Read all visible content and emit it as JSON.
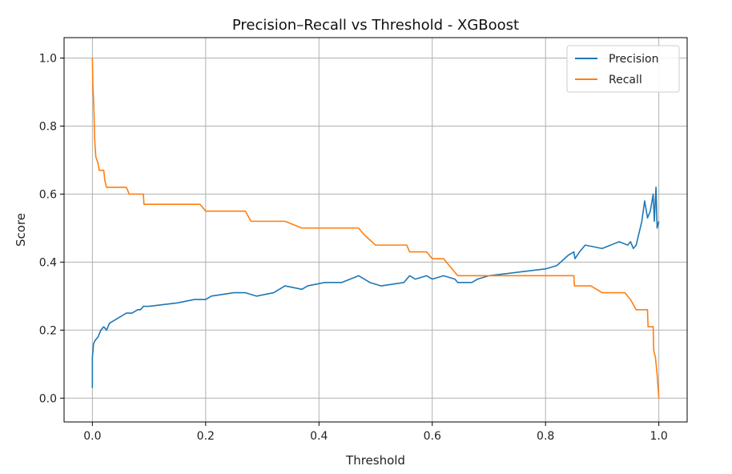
{
  "chart_data": {
    "type": "line",
    "title": "Precision–Recall vs Threshold - XGBoost",
    "xlabel": "Threshold",
    "ylabel": "Score",
    "xlim": [
      -0.05,
      1.05
    ],
    "ylim": [
      -0.07,
      1.06
    ],
    "xticks": [
      0.0,
      0.2,
      0.4,
      0.6,
      0.8,
      1.0
    ],
    "xtick_labels": [
      "0.0",
      "0.2",
      "0.4",
      "0.6",
      "0.8",
      "1.0"
    ],
    "yticks": [
      0.0,
      0.2,
      0.4,
      0.6,
      0.8,
      1.0
    ],
    "ytick_labels": [
      "0.0",
      "0.2",
      "0.4",
      "0.6",
      "0.8",
      "1.0"
    ],
    "grid": true,
    "legend": "top-right",
    "series": [
      {
        "name": "Precision",
        "color": "#1f77b4",
        "points": [
          [
            0.0,
            0.03
          ],
          [
            0.0,
            0.12
          ],
          [
            0.002,
            0.16
          ],
          [
            0.005,
            0.17
          ],
          [
            0.01,
            0.18
          ],
          [
            0.015,
            0.2
          ],
          [
            0.02,
            0.21
          ],
          [
            0.025,
            0.2
          ],
          [
            0.03,
            0.22
          ],
          [
            0.04,
            0.23
          ],
          [
            0.05,
            0.24
          ],
          [
            0.06,
            0.25
          ],
          [
            0.07,
            0.25
          ],
          [
            0.08,
            0.26
          ],
          [
            0.085,
            0.26
          ],
          [
            0.09,
            0.27
          ],
          [
            0.1,
            0.27
          ],
          [
            0.15,
            0.28
          ],
          [
            0.18,
            0.29
          ],
          [
            0.19,
            0.29
          ],
          [
            0.2,
            0.29
          ],
          [
            0.21,
            0.3
          ],
          [
            0.25,
            0.31
          ],
          [
            0.27,
            0.31
          ],
          [
            0.29,
            0.3
          ],
          [
            0.32,
            0.31
          ],
          [
            0.34,
            0.33
          ],
          [
            0.37,
            0.32
          ],
          [
            0.38,
            0.33
          ],
          [
            0.41,
            0.34
          ],
          [
            0.44,
            0.34
          ],
          [
            0.47,
            0.36
          ],
          [
            0.49,
            0.34
          ],
          [
            0.51,
            0.33
          ],
          [
            0.55,
            0.34
          ],
          [
            0.56,
            0.36
          ],
          [
            0.57,
            0.35
          ],
          [
            0.59,
            0.36
          ],
          [
            0.6,
            0.35
          ],
          [
            0.62,
            0.36
          ],
          [
            0.64,
            0.35
          ],
          [
            0.645,
            0.34
          ],
          [
            0.67,
            0.34
          ],
          [
            0.68,
            0.35
          ],
          [
            0.7,
            0.36
          ],
          [
            0.75,
            0.37
          ],
          [
            0.8,
            0.38
          ],
          [
            0.82,
            0.39
          ],
          [
            0.84,
            0.42
          ],
          [
            0.85,
            0.43
          ],
          [
            0.852,
            0.41
          ],
          [
            0.86,
            0.43
          ],
          [
            0.87,
            0.45
          ],
          [
            0.9,
            0.44
          ],
          [
            0.93,
            0.46
          ],
          [
            0.945,
            0.45
          ],
          [
            0.95,
            0.46
          ],
          [
            0.955,
            0.44
          ],
          [
            0.96,
            0.45
          ],
          [
            0.97,
            0.52
          ],
          [
            0.975,
            0.58
          ],
          [
            0.98,
            0.53
          ],
          [
            0.985,
            0.55
          ],
          [
            0.99,
            0.6
          ],
          [
            0.992,
            0.52
          ],
          [
            0.995,
            0.62
          ],
          [
            0.997,
            0.5
          ],
          [
            1.0,
            0.52
          ]
        ]
      },
      {
        "name": "Recall",
        "color": "#ff7f0e",
        "points": [
          [
            0.0,
            1.0
          ],
          [
            0.001,
            0.91
          ],
          [
            0.002,
            0.88
          ],
          [
            0.003,
            0.83
          ],
          [
            0.004,
            0.76
          ],
          [
            0.006,
            0.71
          ],
          [
            0.01,
            0.69
          ],
          [
            0.012,
            0.67
          ],
          [
            0.02,
            0.67
          ],
          [
            0.022,
            0.64
          ],
          [
            0.025,
            0.62
          ],
          [
            0.06,
            0.62
          ],
          [
            0.065,
            0.6
          ],
          [
            0.09,
            0.6
          ],
          [
            0.091,
            0.57
          ],
          [
            0.19,
            0.57
          ],
          [
            0.2,
            0.55
          ],
          [
            0.27,
            0.55
          ],
          [
            0.28,
            0.52
          ],
          [
            0.34,
            0.52
          ],
          [
            0.37,
            0.5
          ],
          [
            0.44,
            0.5
          ],
          [
            0.47,
            0.5
          ],
          [
            0.48,
            0.48
          ],
          [
            0.5,
            0.45
          ],
          [
            0.555,
            0.45
          ],
          [
            0.56,
            0.43
          ],
          [
            0.59,
            0.43
          ],
          [
            0.6,
            0.41
          ],
          [
            0.62,
            0.41
          ],
          [
            0.635,
            0.38
          ],
          [
            0.645,
            0.36
          ],
          [
            0.85,
            0.36
          ],
          [
            0.851,
            0.33
          ],
          [
            0.88,
            0.33
          ],
          [
            0.9,
            0.31
          ],
          [
            0.94,
            0.31
          ],
          [
            0.95,
            0.29
          ],
          [
            0.96,
            0.26
          ],
          [
            0.98,
            0.26
          ],
          [
            0.981,
            0.21
          ],
          [
            0.99,
            0.21
          ],
          [
            0.991,
            0.14
          ],
          [
            0.994,
            0.12
          ],
          [
            0.997,
            0.07
          ],
          [
            1.0,
            0.0
          ]
        ]
      }
    ]
  }
}
